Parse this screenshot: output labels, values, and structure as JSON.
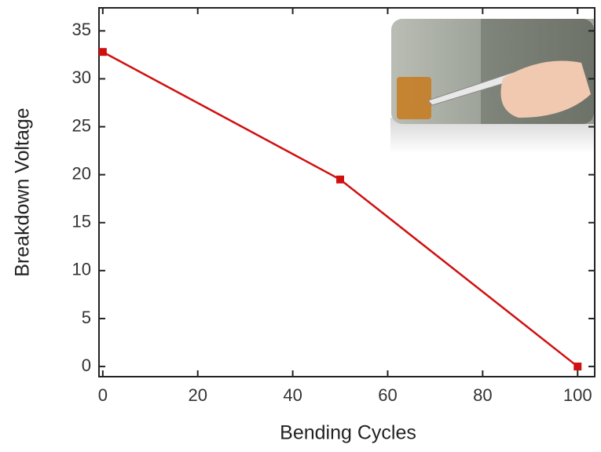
{
  "chart_data": {
    "type": "line",
    "x_label": "Bending Cycles",
    "y_label": "Breakdown Voltage",
    "x": [
      0,
      50,
      100
    ],
    "values": [
      32.8,
      19.5,
      0
    ],
    "color": "#d01010",
    "xlim": [
      -0.8,
      103.6
    ],
    "ylim": [
      -1.06,
      37.4
    ],
    "xticks": [
      0,
      20,
      40,
      60,
      80,
      100
    ],
    "yticks": [
      0,
      5,
      10,
      15,
      20,
      25,
      30,
      35
    ],
    "grid": false
  }
}
